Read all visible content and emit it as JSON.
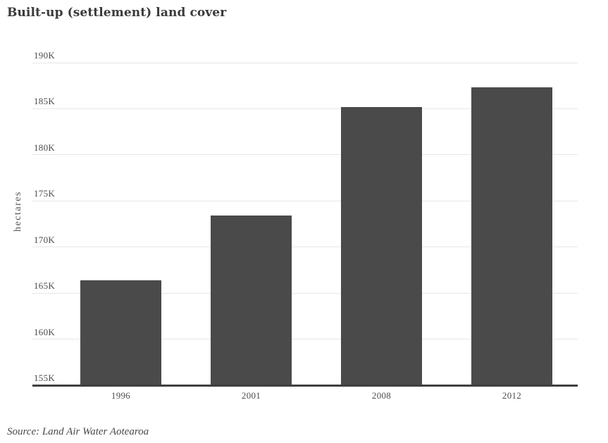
{
  "page": {
    "title": "Built-up (settlement) land cover",
    "source": "Source: Land Air Water Aotearoa"
  },
  "colors": {
    "background": "#ffffff",
    "bar": "#4a4a4a",
    "gridline": "#e7e7e7",
    "axis_line": "#3f3f3f",
    "title_text": "#3a3a3a",
    "tick_text": "#4d4d4d",
    "source_text": "#4a4a4a"
  },
  "chart_data": {
    "type": "bar",
    "title": "Built-up (settlement) land cover",
    "categories": [
      "1996",
      "2001",
      "2008",
      "2012"
    ],
    "values": [
      166400,
      173400,
      185200,
      187300
    ],
    "xlabel": "",
    "ylabel": "hectares",
    "ylim": [
      155000,
      190000
    ],
    "ytick_step": 5000,
    "yticks": [
      155000,
      160000,
      165000,
      170000,
      175000,
      180000,
      185000,
      190000
    ],
    "ytick_labels": [
      "155K",
      "160K",
      "165K",
      "170K",
      "175K",
      "180K",
      "185K",
      "190K"
    ],
    "grid": true,
    "legend": false,
    "source": "Source: Land Air Water Aotearoa"
  }
}
